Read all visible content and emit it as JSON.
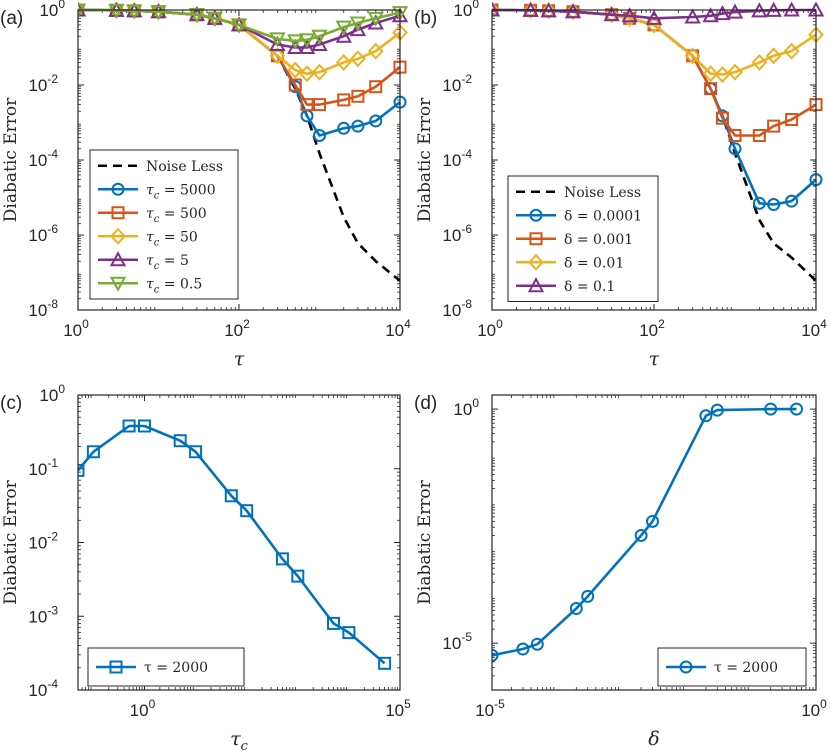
{
  "colors": {
    "blue": "#0072BD",
    "orange": "#D95319",
    "yellow": "#EDB120",
    "purple": "#7E2F8E",
    "green": "#77AC30",
    "black": "#000000"
  },
  "chart_data": [
    {
      "panel_label": "(a)",
      "type": "line",
      "xlabel": "τ",
      "ylabel": "Diabatic Error",
      "xscale": "log",
      "yscale": "log",
      "xlim": [
        1,
        10000
      ],
      "ylim": [
        1e-08,
        1
      ],
      "xticks": [
        {
          "v": 1,
          "mant": "10",
          "exp": "0"
        },
        {
          "v": 100,
          "mant": "10",
          "exp": "2"
        },
        {
          "v": 10000,
          "mant": "10",
          "exp": "4"
        }
      ],
      "yticks": [
        {
          "v": 1e-08,
          "mant": "10",
          "exp": "-8"
        },
        {
          "v": 1e-06,
          "mant": "10",
          "exp": "-6"
        },
        {
          "v": 0.0001,
          "mant": "10",
          "exp": "-4"
        },
        {
          "v": 0.01,
          "mant": "10",
          "exp": "-2"
        },
        {
          "v": 1,
          "mant": "10",
          "exp": "0"
        }
      ],
      "legend_position": "bottom-left",
      "series": [
        {
          "name": "Noise Less",
          "label": "Noise Less",
          "color": "black",
          "marker": "none",
          "dashed": true,
          "x": [
            1,
            3,
            5,
            10,
            30,
            50,
            100,
            300,
            500,
            700,
            1000,
            2000,
            3000,
            5000,
            10000
          ],
          "y": [
            1,
            0.98,
            0.95,
            0.9,
            0.75,
            0.6,
            0.4,
            0.06,
            0.008,
            0.0015,
            0.00015,
            3e-06,
            6e-07,
            2e-07,
            6e-08
          ]
        },
        {
          "name": "τc = 5000",
          "label": "τ",
          "sub": "c",
          "rest": " = 5000",
          "color": "blue",
          "marker": "circle",
          "x": [
            1,
            3,
            5,
            10,
            30,
            50,
            100,
            300,
            500,
            700,
            1000,
            2000,
            3000,
            5000,
            10000
          ],
          "y": [
            1,
            0.98,
            0.95,
            0.9,
            0.75,
            0.6,
            0.4,
            0.06,
            0.009,
            0.0015,
            0.00045,
            0.0007,
            0.0008,
            0.0011,
            0.0035
          ]
        },
        {
          "name": "τc = 500",
          "label": "τ",
          "sub": "c",
          "rest": " = 500",
          "color": "orange",
          "marker": "square",
          "x": [
            1,
            3,
            5,
            10,
            30,
            50,
            100,
            300,
            500,
            700,
            1000,
            2000,
            3000,
            5000,
            10000
          ],
          "y": [
            1,
            0.98,
            0.95,
            0.9,
            0.75,
            0.6,
            0.4,
            0.06,
            0.01,
            0.003,
            0.003,
            0.004,
            0.005,
            0.009,
            0.03
          ]
        },
        {
          "name": "τc = 50",
          "label": "τ",
          "sub": "c",
          "rest": " = 50",
          "color": "yellow",
          "marker": "diamond",
          "x": [
            1,
            3,
            5,
            10,
            30,
            50,
            100,
            300,
            500,
            700,
            1000,
            2000,
            3000,
            5000,
            10000
          ],
          "y": [
            1,
            0.98,
            0.95,
            0.9,
            0.75,
            0.6,
            0.4,
            0.06,
            0.025,
            0.02,
            0.022,
            0.04,
            0.05,
            0.08,
            0.25
          ]
        },
        {
          "name": "τc = 5",
          "label": "τ",
          "sub": "c",
          "rest": " = 5",
          "color": "purple",
          "marker": "triangle",
          "x": [
            1,
            3,
            5,
            10,
            30,
            50,
            100,
            300,
            500,
            700,
            1000,
            2000,
            3000,
            5000,
            10000
          ],
          "y": [
            1,
            0.98,
            0.95,
            0.9,
            0.75,
            0.6,
            0.4,
            0.12,
            0.1,
            0.1,
            0.12,
            0.2,
            0.3,
            0.45,
            0.7
          ]
        },
        {
          "name": "τc = 0.5",
          "label": "τ",
          "sub": "c",
          "rest": " = 0.5",
          "color": "green",
          "marker": "triangle-down",
          "x": [
            1,
            3,
            5,
            10,
            30,
            50,
            100,
            300,
            500,
            700,
            1000,
            2000,
            3000,
            5000,
            10000
          ],
          "y": [
            1,
            0.98,
            0.95,
            0.9,
            0.75,
            0.6,
            0.4,
            0.17,
            0.15,
            0.16,
            0.2,
            0.35,
            0.45,
            0.6,
            0.85
          ]
        }
      ]
    },
    {
      "panel_label": "(b)",
      "type": "line",
      "xlabel": "τ",
      "ylabel": "Diabatic Error",
      "xscale": "log",
      "yscale": "log",
      "xlim": [
        1,
        10000
      ],
      "ylim": [
        1e-08,
        1
      ],
      "xticks": [
        {
          "v": 1,
          "mant": "10",
          "exp": "0"
        },
        {
          "v": 100,
          "mant": "10",
          "exp": "2"
        },
        {
          "v": 10000,
          "mant": "10",
          "exp": "4"
        }
      ],
      "yticks": [
        {
          "v": 1e-08,
          "mant": "10",
          "exp": "-8"
        },
        {
          "v": 1e-06,
          "mant": "10",
          "exp": "-6"
        },
        {
          "v": 0.0001,
          "mant": "10",
          "exp": "-4"
        },
        {
          "v": 0.01,
          "mant": "10",
          "exp": "-2"
        },
        {
          "v": 1,
          "mant": "10",
          "exp": "0"
        }
      ],
      "legend_position": "bottom-left",
      "series": [
        {
          "name": "Noise Less",
          "label": "Noise Less",
          "color": "black",
          "marker": "none",
          "dashed": true,
          "x": [
            1,
            3,
            5,
            10,
            30,
            50,
            100,
            300,
            500,
            700,
            1000,
            2000,
            3000,
            5000,
            10000
          ],
          "y": [
            1,
            0.98,
            0.95,
            0.9,
            0.75,
            0.6,
            0.4,
            0.06,
            0.008,
            0.0015,
            0.00015,
            2.5e-06,
            6e-07,
            2.5e-07,
            6e-08
          ]
        },
        {
          "name": "δ = 0.0001",
          "label": "δ = 0.0001",
          "color": "blue",
          "marker": "circle",
          "x": [
            1,
            3,
            5,
            10,
            30,
            50,
            100,
            300,
            500,
            700,
            1000,
            2000,
            3000,
            5000,
            10000
          ],
          "y": [
            1,
            0.98,
            0.95,
            0.9,
            0.75,
            0.6,
            0.4,
            0.06,
            0.008,
            0.0015,
            0.0002,
            7e-06,
            6.5e-06,
            8e-06,
            3e-05
          ]
        },
        {
          "name": "δ = 0.001",
          "label": "δ = 0.001",
          "color": "orange",
          "marker": "square",
          "x": [
            1,
            3,
            5,
            10,
            30,
            50,
            100,
            300,
            500,
            700,
            1000,
            2000,
            3000,
            5000,
            10000
          ],
          "y": [
            1,
            0.98,
            0.95,
            0.9,
            0.75,
            0.6,
            0.4,
            0.06,
            0.008,
            0.0013,
            0.00045,
            0.00045,
            0.0008,
            0.0012,
            0.003
          ]
        },
        {
          "name": "δ = 0.01",
          "label": "δ = 0.01",
          "color": "yellow",
          "marker": "diamond",
          "x": [
            1,
            3,
            5,
            10,
            30,
            50,
            100,
            300,
            500,
            700,
            1000,
            2000,
            3000,
            5000,
            10000
          ],
          "y": [
            1,
            0.98,
            0.95,
            0.9,
            0.75,
            0.6,
            0.4,
            0.06,
            0.02,
            0.019,
            0.022,
            0.04,
            0.06,
            0.08,
            0.22
          ]
        },
        {
          "name": "δ = 0.1",
          "label": "δ = 0.1",
          "color": "purple",
          "marker": "triangle",
          "x": [
            1,
            3,
            5,
            10,
            30,
            50,
            100,
            300,
            500,
            700,
            1000,
            2000,
            3000,
            5000,
            10000
          ],
          "y": [
            1,
            0.98,
            0.95,
            0.9,
            0.75,
            0.7,
            0.6,
            0.65,
            0.7,
            0.8,
            0.88,
            0.95,
            0.98,
            1,
            1
          ]
        }
      ]
    },
    {
      "panel_label": "(c)",
      "type": "line",
      "xlabel": "τ",
      "xlabel_sub": "c",
      "ylabel": "Diabatic Error",
      "xscale": "log",
      "yscale": "log",
      "xlim": [
        0.05,
        100000
      ],
      "ylim": [
        0.0001,
        1
      ],
      "xticks": [
        {
          "v": 1,
          "mant": "10",
          "exp": "0"
        },
        {
          "v": 100000,
          "mant": "10",
          "exp": "5"
        }
      ],
      "yticks": [
        {
          "v": 0.0001,
          "mant": "10",
          "exp": "-4"
        },
        {
          "v": 0.001,
          "mant": "10",
          "exp": "-3"
        },
        {
          "v": 0.01,
          "mant": "10",
          "exp": "-2"
        },
        {
          "v": 0.1,
          "mant": "10",
          "exp": "-1"
        },
        {
          "v": 1,
          "mant": "10",
          "exp": "0"
        }
      ],
      "legend_position": "bottom-left",
      "series": [
        {
          "name": "τ = 2000",
          "label": "τ = 2000",
          "color": "blue",
          "marker": "square",
          "x": [
            0.05,
            0.1,
            0.5,
            1,
            5,
            10,
            50,
            100,
            500,
            1000,
            5000,
            10000,
            50000
          ],
          "y": [
            0.095,
            0.17,
            0.38,
            0.38,
            0.24,
            0.17,
            0.043,
            0.027,
            0.006,
            0.0035,
            0.0008,
            0.0006,
            0.00023
          ]
        }
      ]
    },
    {
      "panel_label": "(d)",
      "type": "line",
      "xlabel": "δ",
      "ylabel": "Diabatic Error",
      "xscale": "log",
      "yscale": "log",
      "xlim": [
        1e-05,
        1
      ],
      "ylim": [
        1e-06,
        2
      ],
      "xticks": [
        {
          "v": 1e-05,
          "mant": "10",
          "exp": "-5"
        },
        {
          "v": 1,
          "mant": "10",
          "exp": "0"
        }
      ],
      "yticks": [
        {
          "v": 1e-05,
          "mant": "10",
          "exp": "-5"
        },
        {
          "v": 1,
          "mant": "10",
          "exp": "0"
        }
      ],
      "legend_position": "bottom-right",
      "series": [
        {
          "name": "τ = 2000",
          "label": "τ = 2000",
          "color": "blue",
          "marker": "circle",
          "x": [
            1e-05,
            3e-05,
            5e-05,
            0.0002,
            0.0003,
            0.002,
            0.003,
            0.02,
            0.03,
            0.2,
            0.5
          ],
          "y": [
            5.5e-06,
            7.5e-06,
            9.5e-06,
            5.5e-05,
            0.0001,
            0.002,
            0.004,
            0.72,
            0.95,
            1,
            1
          ]
        }
      ]
    }
  ]
}
